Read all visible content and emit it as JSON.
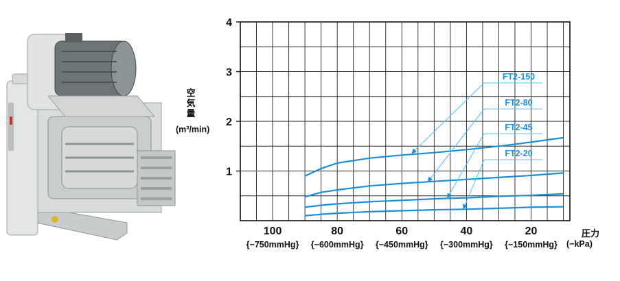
{
  "photo": {
    "name": "blower-machine-photo"
  },
  "chart_data": {
    "type": "line",
    "title": "",
    "ylabel": "空気量",
    "yunit": "(m³/min)",
    "xlabel": "圧力",
    "xunit": "(−kPa)",
    "xlim": [
      110,
      8
    ],
    "ylim": [
      0,
      4
    ],
    "x_ticks": [
      "100",
      "80",
      "60",
      "40",
      "20"
    ],
    "x_tick_values": [
      100,
      80,
      60,
      40,
      20
    ],
    "y_ticks": [
      "1",
      "2",
      "3",
      "4"
    ],
    "y_tick_values": [
      1,
      2,
      3,
      4
    ],
    "mmhg_labels": [
      "{−750mmHg}",
      "{−600mmHg}",
      "{−450mmHg}",
      "{−300mmHg}",
      "{−150mmHg}"
    ],
    "mmhg_values": [
      100,
      80,
      60,
      40,
      20
    ],
    "grid": true,
    "line_color": "#1a8fd8",
    "callout_color": "#55c4f0",
    "series": [
      {
        "name": "FT2-150",
        "x": [
          90,
          85,
          80,
          70,
          60,
          50,
          40,
          30,
          20,
          10
        ],
        "y": [
          0.9,
          1.05,
          1.16,
          1.26,
          1.32,
          1.37,
          1.43,
          1.5,
          1.58,
          1.67
        ]
      },
      {
        "name": "FT2-80",
        "x": [
          90,
          85,
          80,
          70,
          60,
          50,
          40,
          30,
          20,
          10
        ],
        "y": [
          0.48,
          0.57,
          0.62,
          0.7,
          0.75,
          0.79,
          0.83,
          0.87,
          0.91,
          0.96
        ]
      },
      {
        "name": "FT2-45",
        "x": [
          90,
          85,
          80,
          70,
          60,
          50,
          40,
          30,
          20,
          10
        ],
        "y": [
          0.27,
          0.31,
          0.34,
          0.38,
          0.41,
          0.44,
          0.46,
          0.49,
          0.51,
          0.54
        ]
      },
      {
        "name": "FT2-20",
        "x": [
          90,
          85,
          80,
          70,
          60,
          50,
          40,
          30,
          20,
          10
        ],
        "y": [
          0.1,
          0.13,
          0.15,
          0.18,
          0.2,
          0.22,
          0.23,
          0.25,
          0.27,
          0.28
        ]
      }
    ],
    "callouts": [
      {
        "series": "FT2-150",
        "label": "FT2-150",
        "target_x": 57,
        "target_y": 1.35
      },
      {
        "series": "FT2-80",
        "label": "FT2-80",
        "target_x": 52,
        "target_y": 0.78
      },
      {
        "series": "FT2-45",
        "label": "FT2-45",
        "target_x": 46,
        "target_y": 0.45
      },
      {
        "series": "FT2-20",
        "label": "FT2-20",
        "target_x": 41,
        "target_y": 0.23
      }
    ]
  }
}
